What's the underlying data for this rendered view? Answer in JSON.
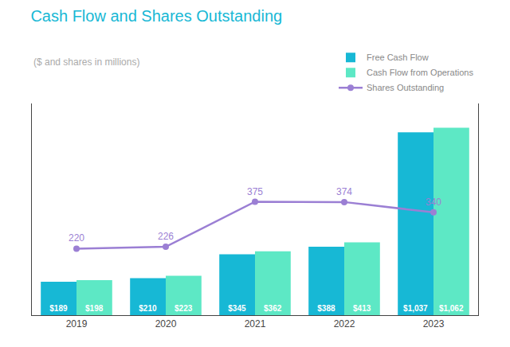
{
  "chart_data": {
    "type": "bar",
    "title": "Cash Flow and Shares Outstanding",
    "subtitle": "($ and shares in millions)",
    "categories": [
      "2019",
      "2020",
      "2021",
      "2022",
      "2023"
    ],
    "series": [
      {
        "name": "Free Cash Flow",
        "type": "bar",
        "color": "#17b8d5",
        "values": [
          189,
          210,
          345,
          388,
          1037
        ],
        "value_labels": [
          "$189",
          "$210",
          "$345",
          "$388",
          "$1,037"
        ]
      },
      {
        "name": "Cash Flow from Operations",
        "type": "bar",
        "color": "#5de8c5",
        "values": [
          198,
          223,
          362,
          413,
          1062
        ],
        "value_labels": [
          "$198",
          "$223",
          "$362",
          "$413",
          "$1,062"
        ]
      },
      {
        "name": "Shares Outstanding",
        "type": "line",
        "axis": "y2",
        "color": "#9b7fd4",
        "marker": "circle",
        "values": [
          220,
          226,
          375,
          374,
          340
        ]
      }
    ],
    "ylim": [
      0,
      1200
    ],
    "y2lim": [
      0,
      700
    ],
    "tick_labels": "x",
    "grid": false,
    "legend": "upper right",
    "data_labels": true
  }
}
